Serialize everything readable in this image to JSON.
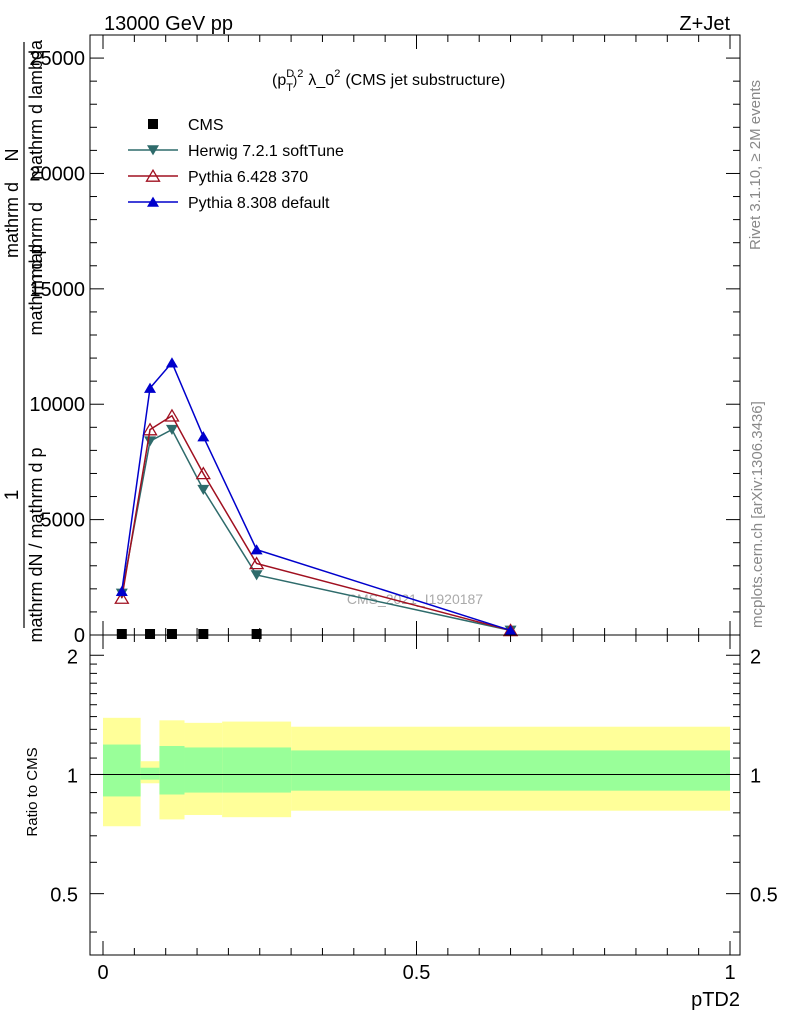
{
  "header": {
    "energy_label": "13000 GeV pp",
    "process_label": "Z+Jet"
  },
  "side_labels": {
    "rivet": "Rivet 3.1.10, ≥ 2M events",
    "mcplots": "mcplots.cern.ch [arXiv:1306.3436]"
  },
  "chart_data": [
    {
      "type": "line",
      "title_parts": {
        "base": "(p",
        "sup": "D",
        "sub": "T",
        "sup2": "2",
        "rest": "λ_0",
        "sup3": "2",
        "tail": "(CMS jet substructure)"
      },
      "ylabel": "1 / mathrm dN / mathrm d p_T  mathrm d N / mathrm d p_T mathrm d lambda",
      "ylabel_lines": [
        "1",
        "mathrm dN / mathrm d p",
        "mathrm d",
        "mathrm d p",
        "mathrm d lambda",
        "mathrm d",
        "N"
      ],
      "xlim": [
        0,
        1
      ],
      "ylim": [
        0,
        26000
      ],
      "yticks": [
        0,
        5000,
        10000,
        15000,
        20000,
        25000
      ],
      "ytick_labels": [
        "0",
        "5000",
        "10000",
        "15000",
        "20000",
        "25000"
      ],
      "watermark": "CMS_2021_I1920187",
      "legend_position": "top-left",
      "series": [
        {
          "name": "CMS",
          "color": "#000000",
          "marker": "square",
          "x": [
            0.03,
            0.075,
            0.11,
            0.16,
            0.245
          ],
          "y": [
            0,
            0,
            0,
            0,
            0
          ]
        },
        {
          "name": "Herwig 7.2.1 softTune",
          "color": "#2e6b6b",
          "marker": "triangle-down",
          "x": [
            0.03,
            0.075,
            0.11,
            0.16,
            0.245,
            0.65
          ],
          "y": [
            1800,
            8400,
            8900,
            6300,
            2600,
            200
          ]
        },
        {
          "name": "Pythia 6.428 370",
          "color": "#a01020",
          "marker": "triangle-up-open",
          "x": [
            0.03,
            0.075,
            0.11,
            0.16,
            0.245,
            0.65
          ],
          "y": [
            1600,
            8900,
            9500,
            7000,
            3100,
            200
          ]
        },
        {
          "name": "Pythia 8.308 default",
          "color": "#0000cc",
          "marker": "triangle-up",
          "x": [
            0.03,
            0.075,
            0.11,
            0.16,
            0.245,
            0.65
          ],
          "y": [
            1900,
            10700,
            11800,
            8600,
            3700,
            200
          ]
        }
      ]
    },
    {
      "type": "area",
      "ylabel": "Ratio to CMS",
      "xlabel": "pTD2",
      "xlim": [
        0,
        1
      ],
      "ylim": [
        0.35,
        2.25
      ],
      "yticks": [
        0.5,
        1,
        2
      ],
      "ytick_labels": [
        "0.5",
        "1",
        "2"
      ],
      "xticks": [
        0,
        0.5,
        1
      ],
      "xtick_labels": [
        "0",
        "0.5",
        "1"
      ],
      "reference_line": 1,
      "bands": [
        {
          "x0": 0.0,
          "x1": 0.06,
          "yellow": [
            0.74,
            1.39
          ],
          "green": [
            0.88,
            1.19
          ]
        },
        {
          "x0": 0.06,
          "x1": 0.09,
          "yellow": [
            0.95,
            1.08
          ],
          "green": [
            0.97,
            1.04
          ]
        },
        {
          "x0": 0.09,
          "x1": 0.13,
          "yellow": [
            0.77,
            1.37
          ],
          "green": [
            0.89,
            1.18
          ]
        },
        {
          "x0": 0.13,
          "x1": 0.19,
          "yellow": [
            0.79,
            1.35
          ],
          "green": [
            0.9,
            1.17
          ]
        },
        {
          "x0": 0.19,
          "x1": 0.3,
          "yellow": [
            0.78,
            1.36
          ],
          "green": [
            0.9,
            1.17
          ]
        },
        {
          "x0": 0.3,
          "x1": 1.0,
          "yellow": [
            0.81,
            1.32
          ],
          "green": [
            0.91,
            1.15
          ]
        }
      ],
      "colors": {
        "yellow": "#ffff99",
        "green": "#99ff99"
      }
    }
  ]
}
